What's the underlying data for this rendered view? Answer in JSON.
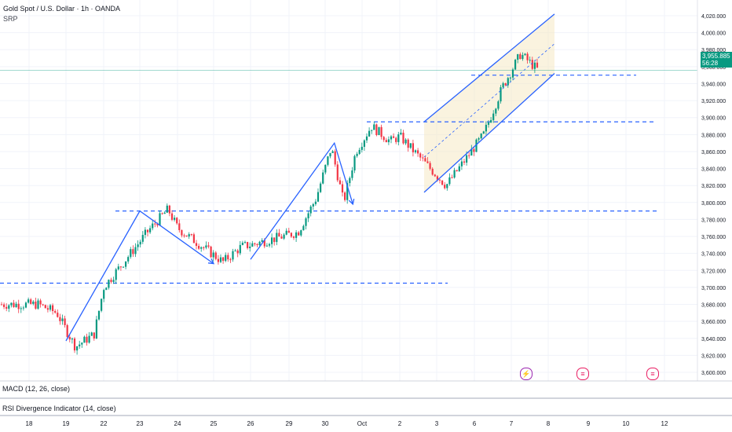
{
  "header": {
    "title": "Gold Spot / U.S. Dollar · 1h · OANDA",
    "indicator": "SRP"
  },
  "price_tag": {
    "price": "3,955.885",
    "countdown": "56:28"
  },
  "indicators": [
    {
      "label": "MACD (12, 26, close)"
    },
    {
      "label": "RSI Divergence Indicator (14, close)"
    }
  ],
  "colors": {
    "up": "#089981",
    "down": "#f23645",
    "drawing": "#2962ff",
    "channel_fill": "#f5e9c4",
    "grid": "#f0f3fa",
    "price_line": "#089981"
  },
  "events": [
    {
      "icon": "lightning-icon",
      "color": "#9c27b0"
    },
    {
      "icon": "us-flag-icon",
      "color": "#e91e63"
    },
    {
      "icon": "us-flag-icon",
      "color": "#e91e63"
    }
  ],
  "chart_data": {
    "type": "candlestick",
    "title": "Gold Spot / U.S. Dollar · 1h · OANDA",
    "ylim": [
      3600,
      4020
    ],
    "y_ticks": [
      "4,020.000",
      "4,000.000",
      "3,980.000",
      "3,960.000",
      "3,940.000",
      "3,920.000",
      "3,900.000",
      "3,880.000",
      "3,860.000",
      "3,840.000",
      "3,820.000",
      "3,800.000",
      "3,780.000",
      "3,760.000",
      "3,740.000",
      "3,720.000",
      "3,700.000",
      "3,680.000",
      "3,660.000",
      "3,640.000",
      "3,620.000",
      "3,600.000"
    ],
    "x_ticks": [
      "18",
      "19",
      "22",
      "23",
      "24",
      "25",
      "26",
      "29",
      "30",
      "Oct",
      "2",
      "3",
      "6",
      "7",
      "8",
      "9",
      "10",
      "12"
    ],
    "current_price": 3955.885,
    "close_path": [
      [
        "18",
        3680
      ],
      [
        "18",
        3670
      ],
      [
        "19",
        3630
      ],
      [
        "19",
        3645
      ],
      [
        "22",
        3700
      ],
      [
        "23",
        3768
      ],
      [
        "23",
        3792
      ],
      [
        "24",
        3770
      ],
      [
        "25",
        3730
      ],
      [
        "25",
        3748
      ],
      [
        "26",
        3750
      ],
      [
        "29",
        3765
      ],
      [
        "29",
        3805
      ],
      [
        "30",
        3865
      ],
      [
        "30",
        3800
      ],
      [
        "30",
        3860
      ],
      [
        "Oct",
        3890
      ],
      [
        "Oct",
        3872
      ],
      [
        "2",
        3878
      ],
      [
        "3",
        3820
      ],
      [
        "3",
        3850
      ],
      [
        "6",
        3880
      ],
      [
        "6",
        3935
      ],
      [
        "7",
        3975
      ],
      [
        "7",
        3955
      ]
    ],
    "horizontal_levels": [
      3950,
      3895,
      3790,
      3705
    ],
    "ascending_channel": {
      "lower": [
        [
          "3",
          3812
        ],
        [
          "8",
          3952
        ]
      ],
      "upper": [
        [
          "3",
          3895
        ],
        [
          "8",
          4022
        ]
      ]
    },
    "wave_lines": [
      [
        [
          "19",
          3637
        ],
        [
          "23",
          3790
        ],
        [
          "25",
          3728
        ]
      ],
      [
        [
          "26",
          3733
        ],
        [
          "30",
          3870
        ],
        [
          "30",
          3798
        ]
      ]
    ]
  }
}
